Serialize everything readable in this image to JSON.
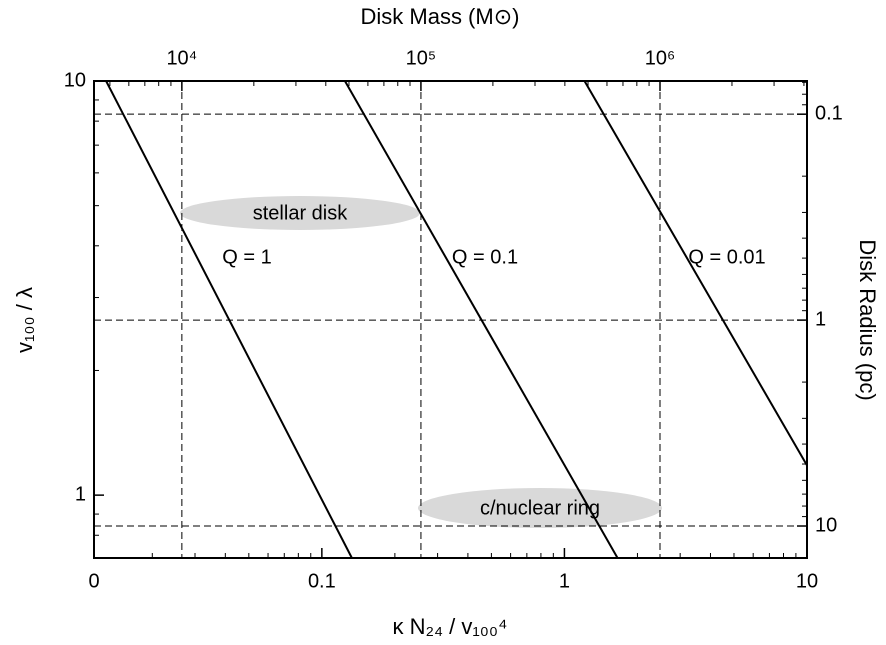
{
  "chart_data": {
    "type": "line",
    "xlabel": "κ N₂₄ / v₁₀₀⁴",
    "ylabel": "v₁₀₀ / λ",
    "x2label": "Disk Mass (M⊙)",
    "y2label": "Disk Radius (pc)",
    "xscale": "log",
    "yscale": "log",
    "xlim": [
      0.0115,
      10
    ],
    "xticks": [
      {
        "value": 0.0115,
        "label": "0"
      },
      0.1,
      1,
      10
    ],
    "ylim": [
      0.705,
      10
    ],
    "yticks": [
      1,
      10
    ],
    "x2lim": [
      4290,
      4120000
    ],
    "x2ticks": [
      {
        "value": 10000,
        "label": "10⁴"
      },
      {
        "value": 100000,
        "label": "10⁵"
      },
      {
        "value": 1000000,
        "label": "10⁶"
      }
    ],
    "y2lim": [
      14.3,
      0.069
    ],
    "y2ticks": [
      0.1,
      1,
      10
    ],
    "secondary_grid": "dashed",
    "minor_ticks": true,
    "series": [
      {
        "name": "Q = 1",
        "color": "#000000",
        "x": [
          0.0129,
          0.133
        ],
        "values": [
          10,
          0.705
        ]
      },
      {
        "name": "Q = 0.1",
        "color": "#000000",
        "x": [
          0.1245,
          1.656
        ],
        "values": [
          10,
          0.705
        ]
      },
      {
        "name": "Q = 0.01",
        "color": "#000000",
        "x": [
          1.21,
          10
        ],
        "values": [
          10,
          1.18
        ]
      }
    ],
    "annotations": [
      "stellar disk",
      "c/nuclear ring"
    ]
  }
}
